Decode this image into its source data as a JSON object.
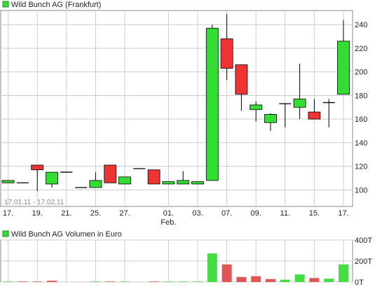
{
  "colors": {
    "up": "#33dd33",
    "down": "#ee3333",
    "vol_up": "#44dd44",
    "vol_down": "#dd5555",
    "grid": "#cccccc",
    "frame": "#888888"
  },
  "chart_data": [
    {
      "type": "candlestick",
      "title": "Wild Bunch AG (Frankfurt)",
      "legend_icon_color": "#33dd33",
      "date_range_label": "17.01.11 - 17.02.11",
      "x_tick_labels": [
        "17.",
        "19.",
        "21.",
        "25.",
        "27.",
        "01.",
        "03.",
        "07.",
        "09.",
        "11.",
        "15.",
        "17."
      ],
      "x_tick_index": [
        0,
        2,
        4,
        6,
        8,
        11,
        13,
        15,
        17,
        19,
        21,
        23
      ],
      "month_label": "Feb.",
      "month_label_index": 11,
      "ylim": [
        86,
        252
      ],
      "yticks": [
        100,
        120,
        140,
        160,
        180,
        200,
        220,
        240
      ],
      "grid": true,
      "candles": [
        {
          "o": 106,
          "h": 108,
          "l": 106,
          "c": 108
        },
        {
          "o": 106,
          "h": 106,
          "l": 106,
          "c": 106
        },
        {
          "o": 121,
          "h": 121,
          "l": 99,
          "c": 117
        },
        {
          "o": 105,
          "h": 115,
          "l": 102,
          "c": 115
        },
        {
          "o": 115,
          "h": 115,
          "l": 115,
          "c": 115
        },
        {
          "o": 102,
          "h": 102,
          "l": 102,
          "c": 102
        },
        {
          "o": 102,
          "h": 115,
          "l": 102,
          "c": 108
        },
        {
          "o": 121,
          "h": 121,
          "l": 106,
          "c": 106
        },
        {
          "o": 105,
          "h": 111,
          "l": 105,
          "c": 111
        },
        {
          "o": 118,
          "h": 118,
          "l": 118,
          "c": 118
        },
        {
          "o": 117,
          "h": 117,
          "l": 105,
          "c": 105
        },
        {
          "o": 105,
          "h": 107,
          "l": 105,
          "c": 107
        },
        {
          "o": 105,
          "h": 116,
          "l": 105,
          "c": 108
        },
        {
          "o": 105,
          "h": 107,
          "l": 105,
          "c": 107
        },
        {
          "o": 108,
          "h": 240,
          "l": 108,
          "c": 237
        },
        {
          "o": 228,
          "h": 249,
          "l": 193,
          "c": 203
        },
        {
          "o": 206,
          "h": 206,
          "l": 167,
          "c": 181
        },
        {
          "o": 168,
          "h": 175,
          "l": 158,
          "c": 172
        },
        {
          "o": 157,
          "h": 165,
          "l": 150,
          "c": 164
        },
        {
          "o": 173,
          "h": 173,
          "l": 153,
          "c": 173
        },
        {
          "o": 170,
          "h": 207,
          "l": 160,
          "c": 177
        },
        {
          "o": 166,
          "h": 177,
          "l": 160,
          "c": 160
        },
        {
          "o": 174,
          "h": 177,
          "l": 153,
          "c": 174
        },
        {
          "o": 181,
          "h": 244,
          "l": 181,
          "c": 226
        }
      ]
    },
    {
      "type": "bar",
      "title": "Wild Bunch AG Volumen in Euro",
      "legend_icon_color": "#33dd33",
      "ylim": [
        0,
        400
      ],
      "ytick_values": [
        0,
        200,
        400
      ],
      "ytick_labels": [
        "0T",
        "200T",
        "400T"
      ],
      "grid": true,
      "values": [
        5,
        5,
        5,
        12,
        0,
        0,
        5,
        5,
        5,
        0,
        5,
        5,
        5,
        5,
        272,
        168,
        48,
        55,
        28,
        22,
        72,
        38,
        32,
        168
      ],
      "directions": [
        "up",
        "down",
        "down",
        "down",
        "down",
        "up",
        "up",
        "down",
        "up",
        "up",
        "down",
        "up",
        "up",
        "up",
        "up",
        "down",
        "down",
        "down",
        "down",
        "up",
        "up",
        "down",
        "up",
        "up"
      ]
    }
  ]
}
